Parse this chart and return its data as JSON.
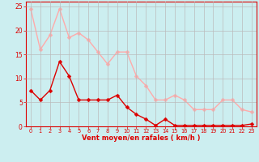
{
  "x": [
    0,
    1,
    2,
    3,
    4,
    5,
    6,
    7,
    8,
    9,
    10,
    11,
    12,
    13,
    14,
    15,
    16,
    17,
    18,
    19,
    20,
    21,
    22,
    23
  ],
  "avg_wind": [
    7.5,
    5.5,
    7.5,
    13.5,
    10.5,
    5.5,
    5.5,
    5.5,
    5.5,
    6.5,
    4.0,
    2.5,
    1.5,
    0.2,
    1.5,
    0.2,
    0.2,
    0.2,
    0.2,
    0.2,
    0.2,
    0.2,
    0.2,
    0.5
  ],
  "gust_wind": [
    24.5,
    16.0,
    19.0,
    24.5,
    18.5,
    19.5,
    18.0,
    15.5,
    13.0,
    15.5,
    15.5,
    10.5,
    8.5,
    5.5,
    5.5,
    6.5,
    5.5,
    3.5,
    3.5,
    3.5,
    5.5,
    5.5,
    3.5,
    3.0
  ],
  "avg_color": "#dd0000",
  "gust_color": "#ffaaaa",
  "bg_color": "#cceef0",
  "grid_color": "#bbbbbb",
  "xlabel": "Vent moyen/en rafales ( km/h )",
  "xlim": [
    -0.5,
    23.5
  ],
  "ylim": [
    0,
    26
  ],
  "yticks": [
    0,
    5,
    10,
    15,
    20,
    25
  ],
  "xticks": [
    0,
    1,
    2,
    3,
    4,
    5,
    6,
    7,
    8,
    9,
    10,
    11,
    12,
    13,
    14,
    15,
    16,
    17,
    18,
    19,
    20,
    21,
    22,
    23
  ],
  "markersize": 2.5,
  "linewidth": 1.0
}
